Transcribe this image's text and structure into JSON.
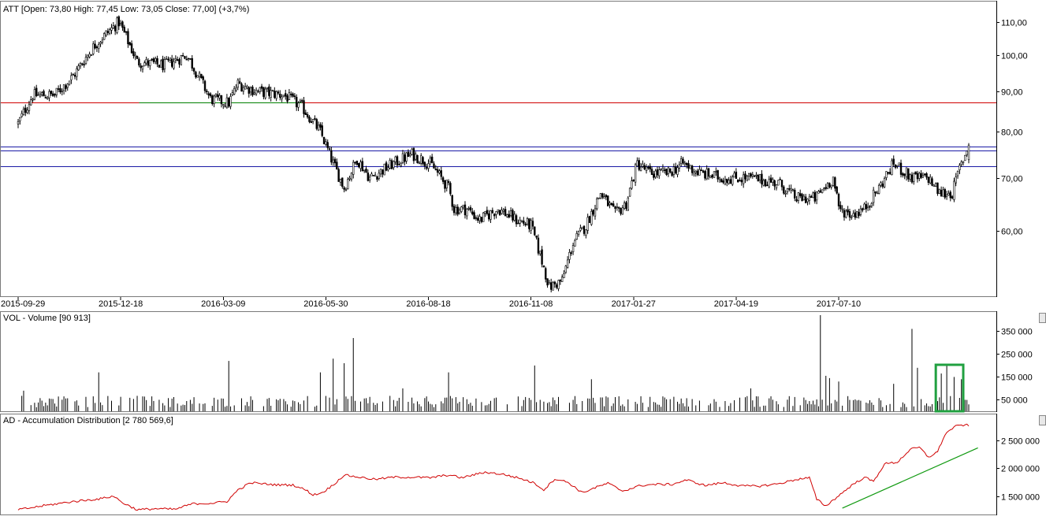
{
  "chart_data": [
    {
      "type": "candlestick",
      "title": "ATT [Open: 73,80  High: 77,45  Low: 73,05  Close: 77,00] (+3,7%)",
      "y_ticks": [
        "110,00",
        "100,00",
        "90,00",
        "80,00",
        "70,00",
        "60,00"
      ],
      "y_tick_values": [
        110,
        100,
        90,
        80,
        70,
        60
      ],
      "scale": "log",
      "ylim": [
        50.5,
        112
      ],
      "x_ticks": [
        "2015-09-29",
        "2015-12-18",
        "2016-03-09",
        "2016-05-30",
        "2016-08-18",
        "2016-11-08",
        "2017-01-27",
        "2017-04-19",
        "2017-07-10"
      ],
      "x_tick_positions": [
        0,
        56,
        112,
        168,
        224,
        280,
        336,
        392,
        448
      ],
      "n_bars": 520,
      "price_path": [
        [
          0,
          82
        ],
        [
          8,
          89
        ],
        [
          20,
          89
        ],
        [
          30,
          94
        ],
        [
          42,
          103
        ],
        [
          55,
          110
        ],
        [
          65,
          98
        ],
        [
          80,
          97
        ],
        [
          92,
          100
        ],
        [
          105,
          88
        ],
        [
          115,
          87
        ],
        [
          120,
          92
        ],
        [
          130,
          90
        ],
        [
          145,
          89
        ],
        [
          155,
          86
        ],
        [
          165,
          80
        ],
        [
          172,
          73
        ],
        [
          178,
          68
        ],
        [
          185,
          74
        ],
        [
          192,
          70
        ],
        [
          205,
          73
        ],
        [
          215,
          75
        ],
        [
          225,
          73
        ],
        [
          235,
          68
        ],
        [
          238,
          64
        ],
        [
          245,
          64
        ],
        [
          252,
          62
        ],
        [
          262,
          64
        ],
        [
          272,
          62
        ],
        [
          280,
          61
        ],
        [
          285,
          56
        ],
        [
          290,
          51
        ],
        [
          297,
          52
        ],
        [
          303,
          58
        ],
        [
          310,
          61
        ],
        [
          318,
          67
        ],
        [
          326,
          63
        ],
        [
          332,
          65
        ],
        [
          338,
          73
        ],
        [
          345,
          71
        ],
        [
          355,
          71
        ],
        [
          363,
          73
        ],
        [
          372,
          71
        ],
        [
          385,
          70
        ],
        [
          400,
          70
        ],
        [
          415,
          69
        ],
        [
          425,
          66
        ],
        [
          435,
          66
        ],
        [
          445,
          70
        ],
        [
          448,
          64
        ],
        [
          455,
          63
        ],
        [
          462,
          64
        ],
        [
          470,
          68
        ],
        [
          478,
          73
        ],
        [
          488,
          70
        ],
        [
          497,
          70
        ],
        [
          503,
          67
        ],
        [
          510,
          67
        ],
        [
          514,
          72
        ],
        [
          519,
          77
        ]
      ],
      "last_candle": {
        "open": 73.8,
        "high": 77.45,
        "low": 73.05,
        "close": 77.0
      },
      "horizontal_lines": [
        {
          "value": 87.2,
          "color": "#d00000",
          "from_bar": 0,
          "to_bar": 520
        },
        {
          "value": 87.2,
          "color": "#008000",
          "from_bar": 66,
          "to_bar": 155
        },
        {
          "value": 76.6,
          "color": "#1a1aa6",
          "from_bar": 0,
          "to_bar": 520
        },
        {
          "value": 75.8,
          "color": "#1a1aa6",
          "from_bar": 0,
          "to_bar": 520
        },
        {
          "value": 72.4,
          "color": "#1a1aa6",
          "from_bar": 0,
          "to_bar": 520
        }
      ],
      "colors": {
        "candle": "#000000"
      }
    },
    {
      "type": "bar",
      "title": "VOL - Volume [90 913]",
      "y_ticks": [
        "350 000",
        "250 000",
        "150 000",
        "50 000"
      ],
      "y_tick_values": [
        350000,
        250000,
        150000,
        50000
      ],
      "ylim": [
        0,
        420000
      ],
      "baseline": 45000,
      "spikes": [
        [
          3,
          90000
        ],
        [
          44,
          170000
        ],
        [
          115,
          220000
        ],
        [
          165,
          170000
        ],
        [
          172,
          230000
        ],
        [
          178,
          210000
        ],
        [
          183,
          320000
        ],
        [
          210,
          100000
        ],
        [
          235,
          170000
        ],
        [
          282,
          200000
        ],
        [
          313,
          140000
        ],
        [
          400,
          100000
        ],
        [
          438,
          420000
        ],
        [
          441,
          155000
        ],
        [
          443,
          145000
        ],
        [
          448,
          130000
        ],
        [
          478,
          120000
        ],
        [
          488,
          360000
        ],
        [
          491,
          190000
        ],
        [
          504,
          165000
        ],
        [
          507,
          205000
        ],
        [
          511,
          150000
        ],
        [
          515,
          140000
        ]
      ],
      "highlight_box": {
        "from_bar": 501,
        "to_bar": 516,
        "color": "#20a040"
      },
      "colors": {
        "bar": "#000000"
      }
    },
    {
      "type": "line",
      "title": "AD - Accumulation Distribution [2 780 569,6]",
      "y_ticks": [
        "2 500 000",
        "2 000 000",
        "1 500 000"
      ],
      "y_tick_values": [
        2500000,
        2000000,
        1500000
      ],
      "ylim": [
        1180000,
        2960000
      ],
      "path": [
        [
          0,
          1250000
        ],
        [
          15,
          1330000
        ],
        [
          30,
          1400000
        ],
        [
          45,
          1450000
        ],
        [
          52,
          1500000
        ],
        [
          57,
          1380000
        ],
        [
          65,
          1250000
        ],
        [
          75,
          1270000
        ],
        [
          86,
          1260000
        ],
        [
          95,
          1360000
        ],
        [
          106,
          1370000
        ],
        [
          114,
          1400000
        ],
        [
          120,
          1610000
        ],
        [
          127,
          1740000
        ],
        [
          134,
          1720000
        ],
        [
          142,
          1700000
        ],
        [
          150,
          1700000
        ],
        [
          157,
          1610000
        ],
        [
          161,
          1520000
        ],
        [
          166,
          1560000
        ],
        [
          172,
          1700000
        ],
        [
          178,
          1880000
        ],
        [
          184,
          1850000
        ],
        [
          195,
          1800000
        ],
        [
          205,
          1840000
        ],
        [
          215,
          1840000
        ],
        [
          225,
          1830000
        ],
        [
          235,
          1880000
        ],
        [
          242,
          1830000
        ],
        [
          255,
          1930000
        ],
        [
          265,
          1890000
        ],
        [
          275,
          1810000
        ],
        [
          282,
          1730000
        ],
        [
          287,
          1610000
        ],
        [
          293,
          1810000
        ],
        [
          300,
          1750000
        ],
        [
          308,
          1560000
        ],
        [
          315,
          1650000
        ],
        [
          322,
          1730000
        ],
        [
          330,
          1590000
        ],
        [
          340,
          1690000
        ],
        [
          348,
          1710000
        ],
        [
          357,
          1710000
        ],
        [
          365,
          1790000
        ],
        [
          375,
          1690000
        ],
        [
          385,
          1740000
        ],
        [
          395,
          1680000
        ],
        [
          405,
          1680000
        ],
        [
          415,
          1720000
        ],
        [
          425,
          1800000
        ],
        [
          432,
          1830000
        ],
        [
          436,
          1440000
        ],
        [
          441,
          1320000
        ],
        [
          447,
          1480000
        ],
        [
          455,
          1690000
        ],
        [
          462,
          1840000
        ],
        [
          467,
          1760000
        ],
        [
          473,
          2080000
        ],
        [
          480,
          2110000
        ],
        [
          487,
          2340000
        ],
        [
          492,
          2380000
        ],
        [
          497,
          2200000
        ],
        [
          502,
          2300000
        ],
        [
          506,
          2610000
        ],
        [
          511,
          2750000
        ],
        [
          515,
          2780000
        ]
      ],
      "trendline": [
        [
          450,
          1280000
        ],
        [
          524,
          2370000
        ]
      ],
      "colors": {
        "line": "#d00000",
        "trendline": "#119a11"
      }
    }
  ]
}
